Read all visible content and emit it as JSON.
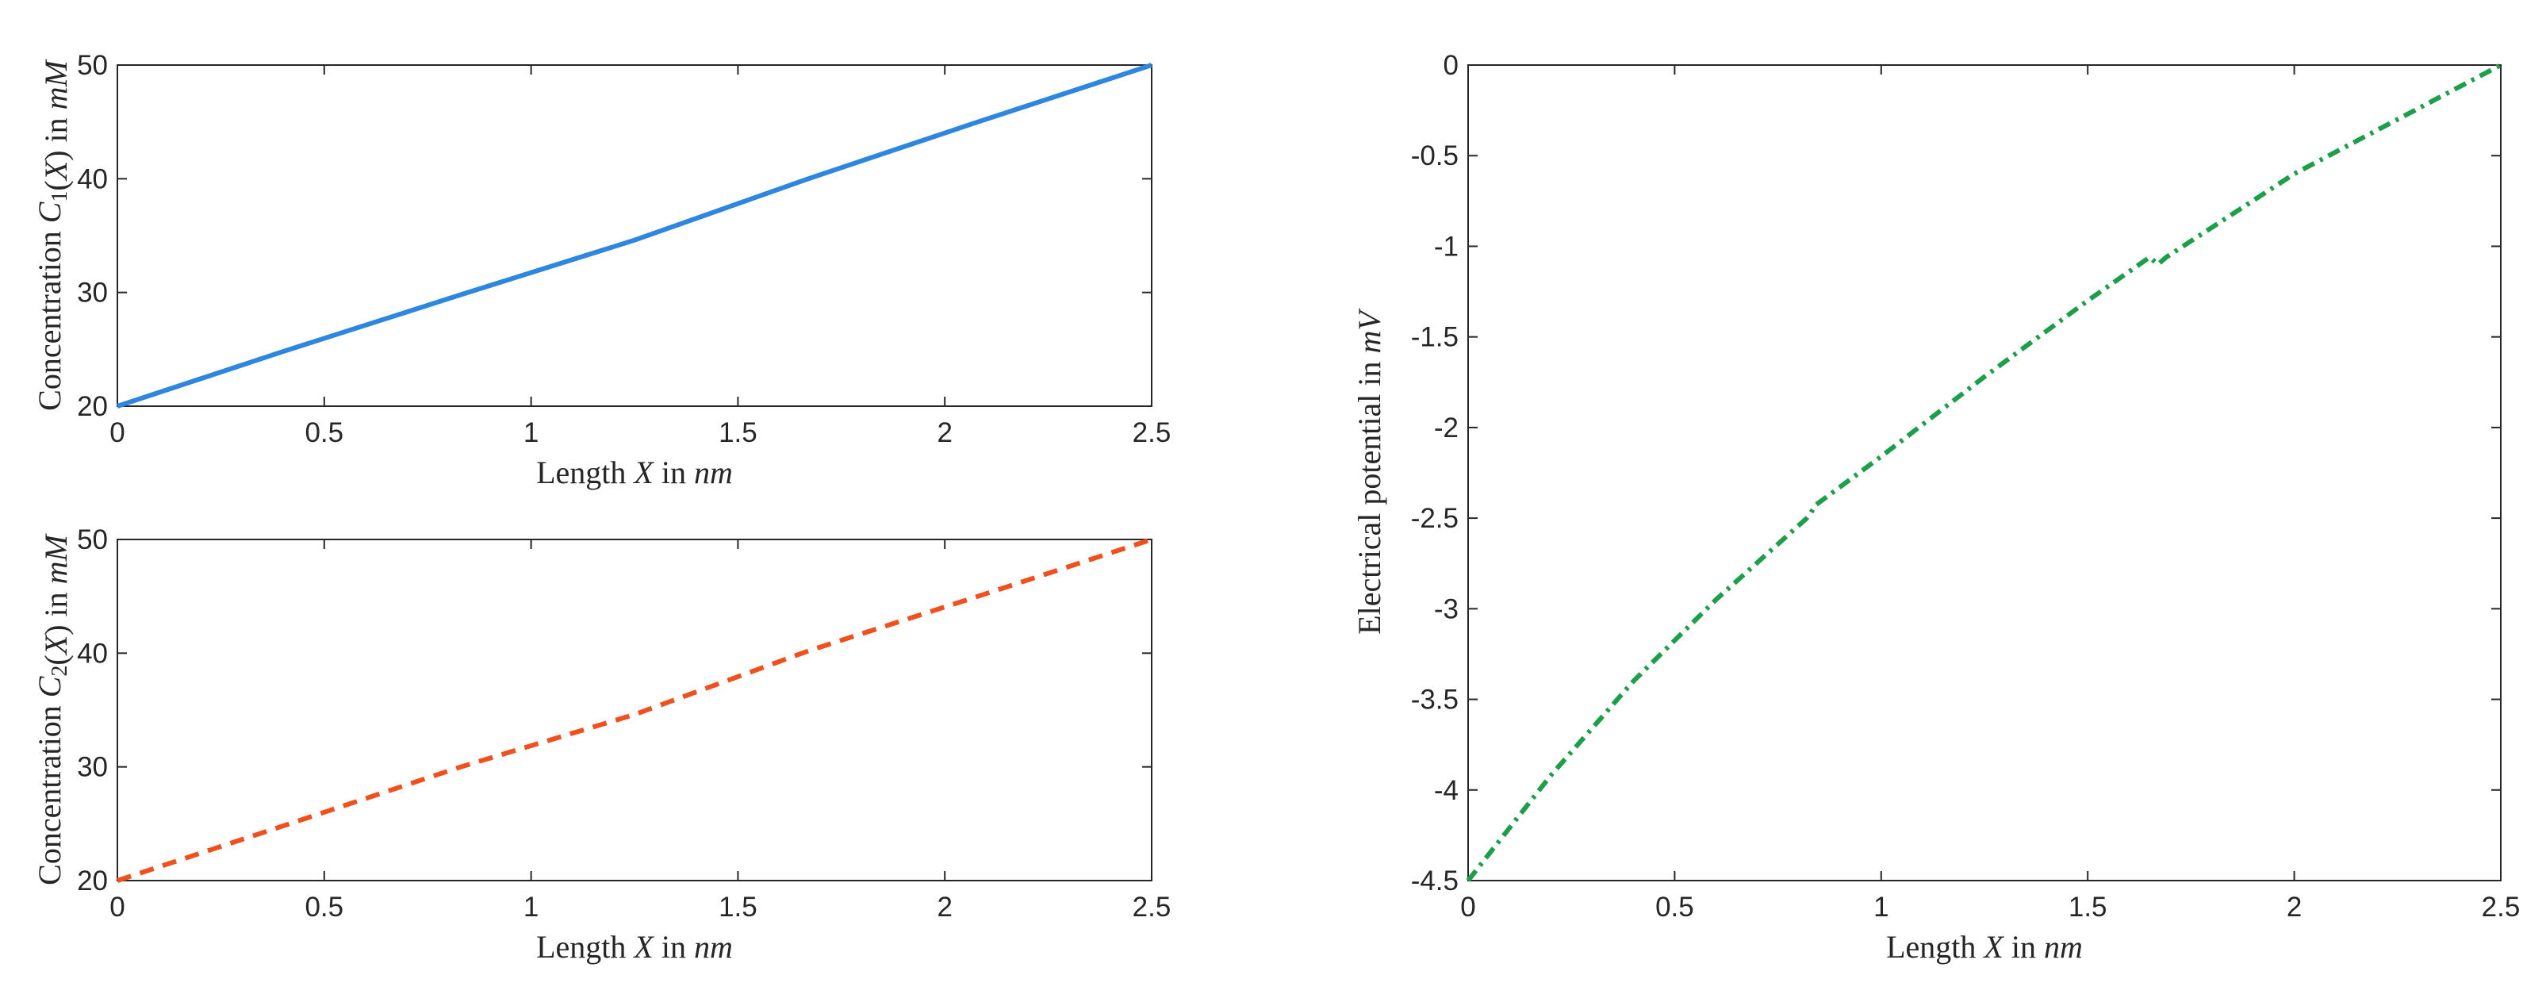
{
  "chart_data": [
    {
      "type": "line",
      "panel": "top-left",
      "xlabel": "Length X in nm",
      "ylabel": "Concentration C1(X) in mM",
      "xlim": [
        0,
        2.5
      ],
      "ylim": [
        20,
        50
      ],
      "xticks": [
        0,
        0.5,
        1,
        1.5,
        2,
        2.5
      ],
      "yticks": [
        20,
        30,
        40,
        50
      ],
      "xtick_labels": [
        "0",
        "0.5",
        "1",
        "1.5",
        "2",
        "2.5"
      ],
      "ytick_labels": [
        "20",
        "30",
        "40",
        "50"
      ],
      "grid": false,
      "series": [
        {
          "color": "#2f86de",
          "style": "solid",
          "x": [
            0,
            0.4,
            0.83,
            1.25,
            1.67,
            2.08,
            2.5
          ],
          "y": [
            20,
            24.8,
            29.8,
            34.6,
            40.0,
            45.0,
            50.0
          ]
        }
      ]
    },
    {
      "type": "line",
      "panel": "bottom-left",
      "xlabel": "Length X in nm",
      "ylabel": "Concentration C2(X) in mM",
      "xlim": [
        0,
        2.5
      ],
      "ylim": [
        20,
        50
      ],
      "xticks": [
        0,
        0.5,
        1,
        1.5,
        2,
        2.5
      ],
      "yticks": [
        20,
        30,
        40,
        50
      ],
      "xtick_labels": [
        "0",
        "0.5",
        "1",
        "1.5",
        "2",
        "2.5"
      ],
      "ytick_labels": [
        "20",
        "30",
        "40",
        "50"
      ],
      "grid": false,
      "series": [
        {
          "color": "#f0501e",
          "style": "dashed",
          "x": [
            0,
            0.4,
            0.83,
            1.25,
            1.67,
            2.08,
            2.5
          ],
          "y": [
            20,
            24.8,
            30.0,
            34.6,
            40.2,
            45.0,
            50.0
          ]
        }
      ]
    },
    {
      "type": "line",
      "panel": "right",
      "xlabel": "Length X in nm",
      "ylabel": "Electrical potential in mV",
      "xlim": [
        0,
        2.5
      ],
      "ylim": [
        -4.5,
        0
      ],
      "xticks": [
        0,
        0.5,
        1,
        1.5,
        2,
        2.5
      ],
      "yticks": [
        -4.5,
        -4,
        -3.5,
        -3,
        -2.5,
        -2,
        -1.5,
        -1,
        -0.5,
        0
      ],
      "xtick_labels": [
        "0",
        "0.5",
        "1",
        "1.5",
        "2",
        "2.5"
      ],
      "ytick_labels": [
        "-4.5",
        "-4",
        "-3.5",
        "-3",
        "-2.5",
        "-2",
        "-1.5",
        "-1",
        "-0.5",
        "0"
      ],
      "grid": false,
      "series": [
        {
          "color": "#1e9e4a",
          "style": "dash-dot",
          "x": [
            0,
            0.2,
            0.4,
            0.6,
            0.82,
            0.83,
            0.84,
            1.0,
            1.25,
            1.5,
            1.65,
            1.67,
            1.69,
            2.0,
            2.25,
            2.5
          ],
          "y": [
            -4.5,
            -3.92,
            -3.4,
            -2.95,
            -2.5,
            -2.47,
            -2.43,
            -2.16,
            -1.72,
            -1.3,
            -1.06,
            -1.1,
            -1.06,
            -0.6,
            -0.3,
            0.0
          ]
        }
      ]
    }
  ]
}
